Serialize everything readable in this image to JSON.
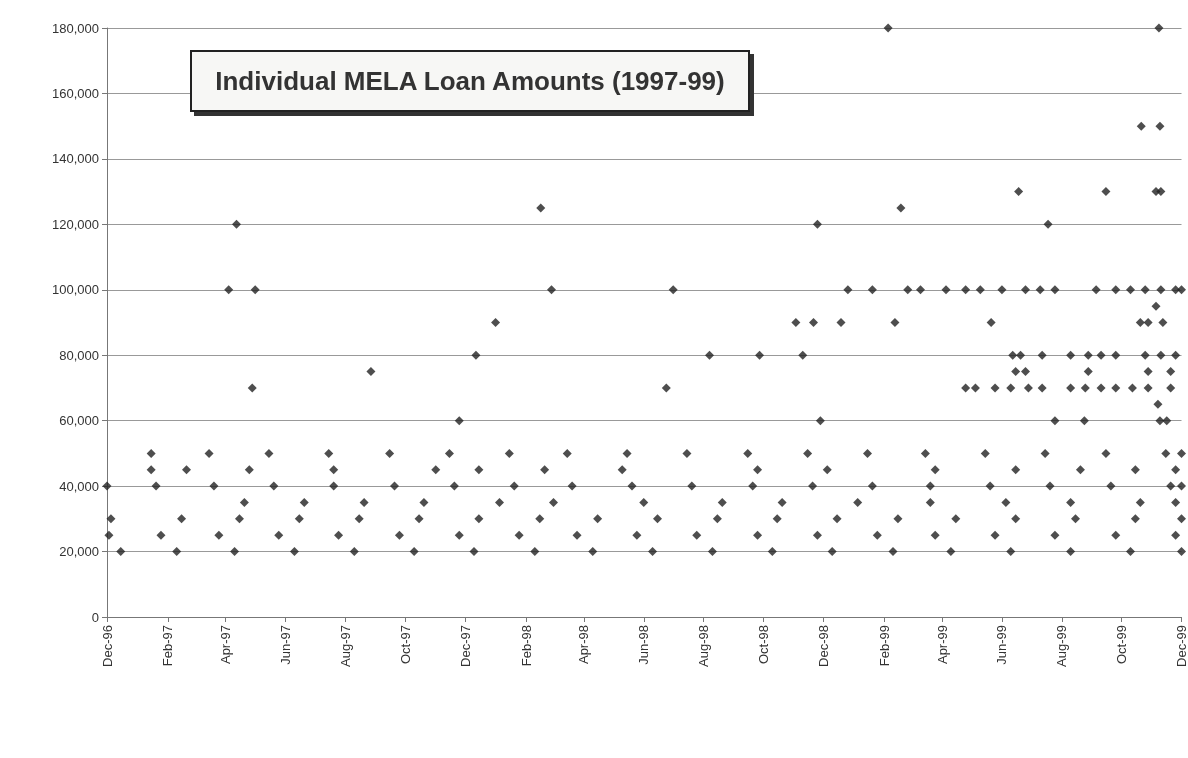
{
  "chart_data": {
    "type": "scatter",
    "title": "Individual MELA Loan Amounts (1997-99)",
    "xlim": [
      "1996-12-01",
      "1999-12-01"
    ],
    "xticks": [
      {
        "value": "1996-12-01",
        "label": "Dec-96"
      },
      {
        "value": "1997-02-01",
        "label": "Feb-97"
      },
      {
        "value": "1997-04-01",
        "label": "Apr-97"
      },
      {
        "value": "1997-06-01",
        "label": "Jun-97"
      },
      {
        "value": "1997-08-01",
        "label": "Aug-97"
      },
      {
        "value": "1997-10-01",
        "label": "Oct-97"
      },
      {
        "value": "1997-12-01",
        "label": "Dec-97"
      },
      {
        "value": "1998-02-01",
        "label": "Feb-98"
      },
      {
        "value": "1998-04-01",
        "label": "Apr-98"
      },
      {
        "value": "1998-06-01",
        "label": "Jun-98"
      },
      {
        "value": "1998-08-01",
        "label": "Aug-98"
      },
      {
        "value": "1998-10-01",
        "label": "Oct-98"
      },
      {
        "value": "1998-12-01",
        "label": "Dec-98"
      },
      {
        "value": "1999-02-01",
        "label": "Feb-99"
      },
      {
        "value": "1999-04-01",
        "label": "Apr-99"
      },
      {
        "value": "1999-06-01",
        "label": "Jun-99"
      },
      {
        "value": "1999-08-01",
        "label": "Aug-99"
      },
      {
        "value": "1999-10-01",
        "label": "Oct-99"
      },
      {
        "value": "1999-12-01",
        "label": "Dec-99"
      }
    ],
    "ylim": [
      0,
      180000
    ],
    "yticks": [
      {
        "value": 0,
        "label": "0"
      },
      {
        "value": 20000,
        "label": "20,000"
      },
      {
        "value": 40000,
        "label": "40,000"
      },
      {
        "value": 60000,
        "label": "60,000"
      },
      {
        "value": 80000,
        "label": "80,000"
      },
      {
        "value": 100000,
        "label": "100,000"
      },
      {
        "value": 120000,
        "label": "120,000"
      },
      {
        "value": 140000,
        "label": "140,000"
      },
      {
        "value": 160000,
        "label": "160,000"
      },
      {
        "value": 180000,
        "label": "180,000"
      }
    ],
    "grid": "y",
    "marker": "diamond",
    "series": [
      {
        "color": "#222222",
        "x": [
          "1996-12-15",
          "1997-02-10",
          "1997-04-10",
          "1997-06-10",
          "1997-08-10",
          "1997-10-10",
          "1997-12-10",
          "1998-02-10",
          "1998-04-10",
          "1998-06-10",
          "1998-08-10",
          "1998-10-10",
          "1998-12-10",
          "1999-02-10",
          "1999-04-10",
          "1999-06-10",
          "1999-08-10",
          "1999-10-10",
          "1999-12-01",
          "1996-12-03",
          "1997-01-25",
          "1997-03-25",
          "1997-05-25",
          "1997-07-25",
          "1997-09-25",
          "1997-11-25",
          "1998-01-25",
          "1998-03-25",
          "1998-05-25",
          "1998-07-25",
          "1998-09-25",
          "1998-11-25",
          "1999-01-25",
          "1999-03-25",
          "1999-05-25",
          "1999-07-25",
          "1999-09-25",
          "1999-11-25",
          "1996-12-05",
          "1997-02-15",
          "1997-04-15",
          "1997-06-15",
          "1997-08-15",
          "1997-10-15",
          "1997-12-15",
          "1998-02-15",
          "1998-04-15",
          "1998-06-15",
          "1998-08-15",
          "1998-10-15",
          "1998-12-15",
          "1999-02-15",
          "1999-04-15",
          "1999-06-15",
          "1999-08-15",
          "1999-10-15",
          "1999-12-01",
          "1997-04-20",
          "1997-06-20",
          "1997-08-20",
          "1997-10-20",
          "1998-01-05",
          "1998-03-01",
          "1998-06-01",
          "1998-08-20",
          "1998-10-20",
          "1999-01-05",
          "1999-03-20",
          "1999-06-05",
          "1999-08-10",
          "1999-10-20",
          "1999-11-25",
          "1996-12-01",
          "1997-01-20",
          "1997-03-20",
          "1997-05-20",
          "1997-07-20",
          "1997-09-20",
          "1997-11-20",
          "1998-01-20",
          "1998-03-20",
          "1998-05-20",
          "1998-07-20",
          "1998-09-20",
          "1998-11-20",
          "1999-01-20",
          "1999-03-20",
          "1999-05-20",
          "1999-07-20",
          "1999-09-20",
          "1999-11-20",
          "1999-12-01",
          "1997-01-15",
          "1997-02-20",
          "1997-04-25",
          "1997-07-20",
          "1997-11-01",
          "1997-12-15",
          "1998-02-20",
          "1998-05-10",
          "1998-09-25",
          "1998-12-05",
          "1999-03-25",
          "1999-06-15",
          "1999-08-20",
          "1999-10-15",
          "1999-11-25",
          "1997-01-15",
          "1997-03-15",
          "1997-05-15",
          "1997-07-15",
          "1997-09-15",
          "1997-11-15",
          "1998-01-15",
          "1998-03-15",
          "1998-05-15",
          "1998-07-15",
          "1998-09-15",
          "1998-11-15",
          "1999-01-15",
          "1999-03-15",
          "1999-05-15",
          "1999-07-15",
          "1999-09-15",
          "1999-11-15",
          "1999-12-01",
          "1997-04-12",
          "1997-04-04",
          "1997-05-01",
          "1997-04-28",
          "1998-02-16",
          "1998-02-27",
          "1997-08-27",
          "1997-11-25",
          "1997-12-12",
          "1998-01-01",
          "1998-07-01",
          "1998-06-24",
          "1998-08-07",
          "1998-09-27",
          "1998-11-03",
          "1998-11-21",
          "1998-11-10",
          "1998-11-25",
          "1998-11-28",
          "1998-12-19",
          "1999-02-05",
          "1999-02-12",
          "1999-02-18",
          "1999-05-21",
          "1999-06-18",
          "1999-07-18",
          "1999-07-25",
          "1999-08-24",
          "1999-09-15",
          "1999-10-21",
          "1999-11-09",
          "1999-11-08",
          "1999-11-05",
          "1999-11-10",
          "1999-11-05",
          "1999-11-07",
          "1999-11-09",
          "1999-11-16",
          "1998-12-26",
          "1999-01-20",
          "1999-02-25",
          "1999-03-10",
          "1999-04-05",
          "1999-04-25",
          "1999-05-10",
          "1999-06-01",
          "1999-06-25",
          "1999-07-10",
          "1999-07-25",
          "1999-09-05",
          "1999-09-25",
          "1999-10-10",
          "1999-10-25",
          "1999-11-10",
          "1999-11-25",
          "1999-12-01",
          "1999-10-20",
          "1999-10-28",
          "1999-11-12",
          "1999-06-12",
          "1999-06-20",
          "1999-07-12",
          "1999-08-10",
          "1999-08-28",
          "1999-09-10",
          "1999-09-25",
          "1999-10-25",
          "1999-11-10",
          "1999-11-25",
          "1999-06-15",
          "1999-06-25",
          "1999-08-28",
          "1999-10-28",
          "1999-11-20",
          "1999-04-25",
          "1999-05-05",
          "1999-05-25",
          "1999-06-10",
          "1999-06-28",
          "1999-07-12",
          "1999-08-10",
          "1999-08-25",
          "1999-09-10",
          "1999-09-25",
          "1999-10-12",
          "1999-10-28",
          "1999-11-20"
        ],
        "values": [
          20000,
          20000,
          20000,
          20000,
          20000,
          20000,
          20000,
          20000,
          20000,
          20000,
          20000,
          20000,
          20000,
          20000,
          20000,
          20000,
          20000,
          20000,
          20000,
          25000,
          25000,
          25000,
          25000,
          25000,
          25000,
          25000,
          25000,
          25000,
          25000,
          25000,
          25000,
          25000,
          25000,
          25000,
          25000,
          25000,
          25000,
          25000,
          30000,
          30000,
          30000,
          30000,
          30000,
          30000,
          30000,
          30000,
          30000,
          30000,
          30000,
          30000,
          30000,
          30000,
          30000,
          30000,
          30000,
          30000,
          30000,
          35000,
          35000,
          35000,
          35000,
          35000,
          35000,
          35000,
          35000,
          35000,
          35000,
          35000,
          35000,
          35000,
          35000,
          35000,
          40000,
          40000,
          40000,
          40000,
          40000,
          40000,
          40000,
          40000,
          40000,
          40000,
          40000,
          40000,
          40000,
          40000,
          40000,
          40000,
          40000,
          40000,
          40000,
          40000,
          45000,
          45000,
          45000,
          45000,
          45000,
          45000,
          45000,
          45000,
          45000,
          45000,
          45000,
          45000,
          45000,
          45000,
          45000,
          50000,
          50000,
          50000,
          50000,
          50000,
          50000,
          50000,
          50000,
          50000,
          50000,
          50000,
          50000,
          50000,
          50000,
          50000,
          50000,
          50000,
          50000,
          50000,
          120000,
          100000,
          100000,
          70000,
          125000,
          100000,
          75000,
          60000,
          80000,
          90000,
          100000,
          70000,
          80000,
          80000,
          90000,
          90000,
          80000,
          120000,
          60000,
          90000,
          180000,
          90000,
          125000,
          90000,
          130000,
          120000,
          60000,
          60000,
          130000,
          150000,
          150000,
          180000,
          130000,
          130000,
          95000,
          65000,
          60000,
          60000,
          100000,
          100000,
          100000,
          100000,
          100000,
          100000,
          100000,
          100000,
          100000,
          100000,
          100000,
          100000,
          100000,
          100000,
          100000,
          100000,
          100000,
          100000,
          90000,
          90000,
          90000,
          80000,
          80000,
          80000,
          80000,
          80000,
          80000,
          80000,
          80000,
          80000,
          80000,
          75000,
          75000,
          75000,
          75000,
          75000,
          70000,
          70000,
          70000,
          70000,
          70000,
          70000,
          70000,
          70000,
          70000,
          70000,
          70000,
          70000,
          70000
        ]
      }
    ]
  }
}
